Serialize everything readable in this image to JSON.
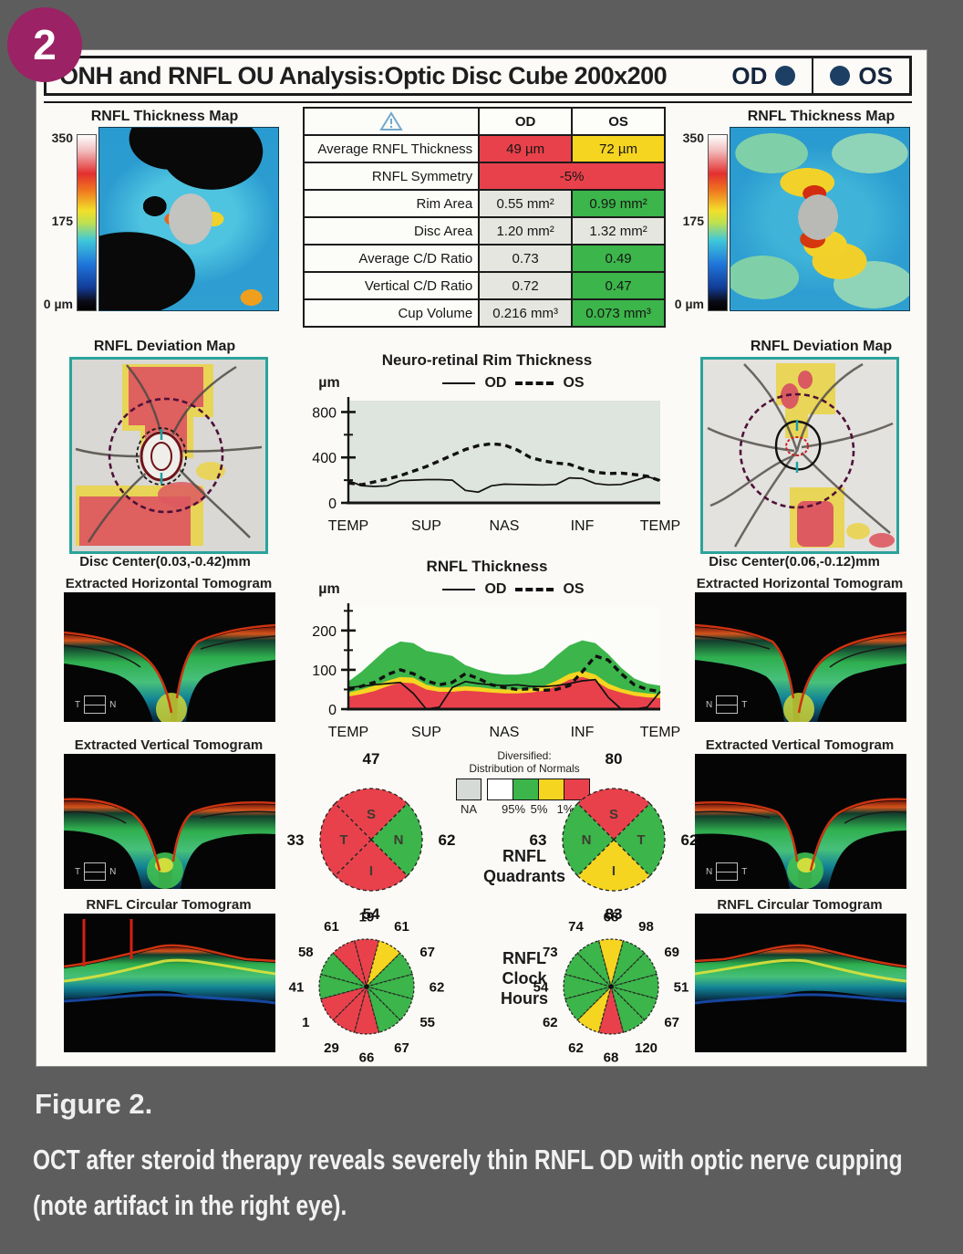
{
  "figure_badge": "2",
  "caption": {
    "label": "Figure 2.",
    "text": "OCT after steroid therapy reveals severely thin RNFL OD with optic nerve cupping (note artifact in the right eye)."
  },
  "report": {
    "title": "ONH and RNFL OU Analysis:Optic Disc Cube 200x200",
    "od_label": "OD",
    "os_label": "OS"
  },
  "colors": {
    "red": "#e8414b",
    "yellow": "#f6d520",
    "green": "#3cb54a",
    "na_gray": "#d6dad6",
    "plain_cell": "#e6e6e1",
    "navy": "#1d3f63",
    "badge_magenta": "#9b2264",
    "page_gray": "#5d5d5d"
  },
  "panels": {
    "thickness_map_title": "RNFL Thickness Map",
    "deviation_map_title": "RNFL Deviation Map",
    "horizontal_tomogram_title": "Extracted Horizontal Tomogram",
    "vertical_tomogram_title": "Extracted Vertical Tomogram",
    "circular_tomogram_title": "RNFL Circular Tomogram",
    "scale_ticks": [
      "350",
      "175",
      "0 µm"
    ],
    "od_disc_center": "Disc Center(0.03,-0.42)mm",
    "os_disc_center": "Disc Center(0.06,-0.12)mm",
    "od_horizontal_orientation": [
      "T",
      "N"
    ],
    "os_horizontal_orientation": [
      "N",
      "T"
    ],
    "od_vertical_orientation": [
      "T",
      "N"
    ],
    "os_vertical_orientation": [
      "N",
      "T"
    ]
  },
  "table": {
    "warning_icon": "warning-triangle",
    "columns": [
      "OD",
      "OS"
    ],
    "rows": [
      {
        "label": "Average RNFL Thickness",
        "od": "49 µm",
        "os": "72 µm",
        "od_status": "red",
        "os_status": "yellow"
      },
      {
        "label": "RNFL Symmetry",
        "value": "-5%",
        "status": "red"
      },
      {
        "label": "Rim Area",
        "od": "0.55 mm²",
        "os": "0.99 mm²",
        "od_status": "plain",
        "os_status": "green"
      },
      {
        "label": "Disc Area",
        "od": "1.20 mm²",
        "os": "1.32 mm²",
        "od_status": "plain",
        "os_status": "plain"
      },
      {
        "label": "Average C/D Ratio",
        "od": "0.73",
        "os": "0.49",
        "od_status": "plain",
        "os_status": "green"
      },
      {
        "label": "Vertical C/D Ratio",
        "od": "0.72",
        "os": "0.47",
        "od_status": "plain",
        "os_status": "green"
      },
      {
        "label": "Cup Volume",
        "od": "0.216 mm³",
        "os": "0.073 mm³",
        "od_status": "plain",
        "os_status": "green"
      }
    ]
  },
  "normals_legend": {
    "title": "Diversified:",
    "subtitle": "Distribution of Normals",
    "labels": [
      "NA",
      "95%",
      "5%",
      "1%"
    ]
  },
  "center_labels": {
    "quadrants": [
      "RNFL",
      "Quadrants"
    ],
    "clock": [
      "RNFL",
      "Clock",
      "Hours"
    ]
  },
  "chart_data": [
    {
      "type": "line",
      "title": "Neuro-retinal Rim Thickness",
      "ylabel": "µm",
      "x_ticks": [
        "TEMP",
        "SUP",
        "NAS",
        "INF",
        "TEMP"
      ],
      "ylim": [
        0,
        900
      ],
      "yticks_major": [
        0,
        400,
        800
      ],
      "yticks_minor": [
        200,
        600
      ],
      "plot_bg": "#dee4de",
      "legend": [
        {
          "name": "OD",
          "style": "solid"
        },
        {
          "name": "OS",
          "style": "dashed"
        }
      ],
      "series": [
        {
          "name": "OD",
          "style": "solid",
          "values": [
            195,
            152,
            145,
            150,
            195,
            200,
            205,
            205,
            200,
            110,
            95,
            150,
            165,
            162,
            160,
            158,
            162,
            220,
            215,
            170,
            158,
            162,
            195,
            230,
            200
          ]
        },
        {
          "name": "OS",
          "style": "dashed",
          "values": [
            175,
            160,
            185,
            210,
            240,
            280,
            320,
            370,
            420,
            470,
            505,
            520,
            510,
            465,
            400,
            370,
            350,
            340,
            300,
            270,
            258,
            262,
            250,
            235,
            195
          ]
        }
      ]
    },
    {
      "type": "area+line",
      "title": "RNFL Thickness",
      "ylabel": "µm",
      "x_ticks": [
        "TEMP",
        "SUP",
        "NAS",
        "INF",
        "TEMP"
      ],
      "ylim": [
        0,
        260
      ],
      "yticks_major": [
        0,
        100,
        200
      ],
      "yticks_minor": [
        50,
        150,
        250
      ],
      "plot_bg": "#fcfcf9",
      "legend": [
        {
          "name": "OD",
          "style": "solid"
        },
        {
          "name": "OS",
          "style": "dashed"
        }
      ],
      "bands": {
        "green_top": [
          70,
          95,
          125,
          155,
          172,
          168,
          148,
          142,
          135,
          112,
          100,
          92,
          88,
          88,
          92,
          105,
          135,
          162,
          175,
          168,
          140,
          105,
          78,
          65,
          60
        ],
        "yellow_top": [
          42,
          50,
          60,
          72,
          82,
          80,
          62,
          55,
          55,
          58,
          56,
          52,
          50,
          50,
          52,
          58,
          72,
          90,
          98,
          88,
          65,
          52,
          44,
          40,
          38
        ],
        "red_top": [
          32,
          38,
          46,
          58,
          68,
          66,
          50,
          44,
          44,
          47,
          45,
          42,
          40,
          40,
          42,
          47,
          58,
          75,
          82,
          72,
          52,
          42,
          34,
          30,
          28
        ]
      },
      "series": [
        {
          "name": "OD",
          "style": "solid",
          "values": [
            55,
            58,
            62,
            65,
            68,
            40,
            0,
            5,
            55,
            70,
            65,
            62,
            60,
            62,
            58,
            57,
            60,
            65,
            72,
            75,
            30,
            0,
            0,
            5,
            45
          ]
        },
        {
          "name": "OS",
          "style": "dashed",
          "values": [
            50,
            58,
            68,
            88,
            100,
            90,
            72,
            62,
            68,
            90,
            78,
            62,
            55,
            50,
            52,
            48,
            50,
            60,
            95,
            135,
            125,
            90,
            62,
            50,
            45
          ]
        }
      ]
    },
    {
      "type": "quadrant-pie",
      "title": "RNFL Quadrants",
      "od": {
        "t_side": "left",
        "S": {
          "value": 47,
          "status": "red"
        },
        "T": {
          "value": 33,
          "status": "red"
        },
        "N": {
          "value": 62,
          "status": "green"
        },
        "I": {
          "value": 54,
          "status": "red"
        }
      },
      "os": {
        "t_side": "right",
        "S": {
          "value": 80,
          "status": "red"
        },
        "N": {
          "value": 63,
          "status": "green"
        },
        "T": {
          "value": 62,
          "status": "green"
        },
        "I": {
          "value": 83,
          "status": "yellow"
        }
      }
    },
    {
      "type": "clock-pie",
      "title": "RNFL Clock Hours",
      "hours_order": [
        12,
        1,
        2,
        3,
        4,
        5,
        6,
        7,
        8,
        9,
        10,
        11
      ],
      "od": {
        "values": [
          19,
          61,
          67,
          62,
          55,
          67,
          66,
          29,
          1,
          41,
          58,
          61
        ],
        "status": [
          "red",
          "yellow",
          "green",
          "green",
          "green",
          "green",
          "red",
          "red",
          "red",
          "green",
          "green",
          "red"
        ]
      },
      "os": {
        "values": [
          68,
          98,
          69,
          51,
          67,
          120,
          68,
          62,
          62,
          54,
          73,
          74
        ],
        "status": [
          "yellow",
          "green",
          "green",
          "green",
          "green",
          "green",
          "red",
          "yellow",
          "green",
          "green",
          "green",
          "green"
        ]
      }
    }
  ]
}
